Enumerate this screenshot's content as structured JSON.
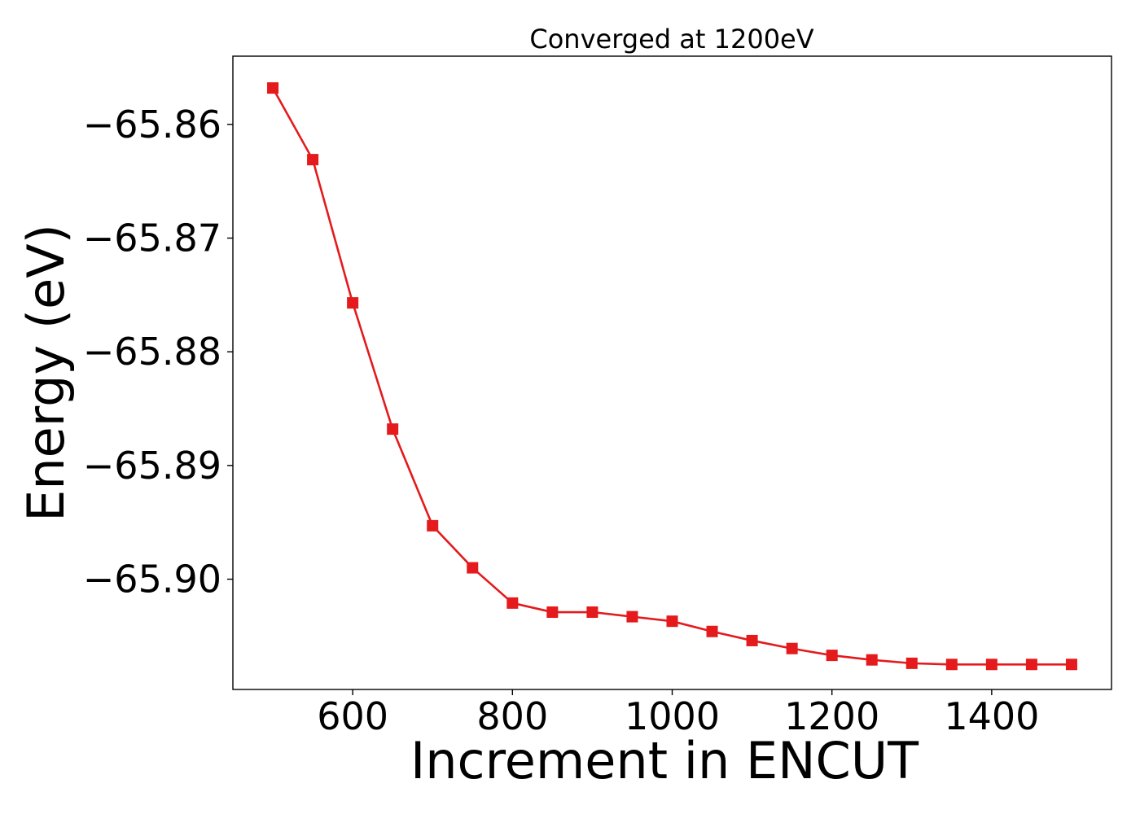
{
  "chart_data": {
    "type": "line",
    "title": "Converged at 1200eV",
    "xlabel": "Increment in ENCUT",
    "ylabel": "Energy (eV)",
    "xlim": [
      450,
      1550
    ],
    "ylim": [
      -65.9097,
      -65.854
    ],
    "xticks": [
      600,
      800,
      1000,
      1200,
      1400
    ],
    "xtick_labels": [
      "600",
      "800",
      "1000",
      "1200",
      "1400"
    ],
    "yticks": [
      -65.86,
      -65.87,
      -65.88,
      -65.89,
      -65.9
    ],
    "ytick_labels": [
      "−65.86",
      "−65.87",
      "−65.88",
      "−65.89",
      "−65.90"
    ],
    "grid": false,
    "series": [
      {
        "color": "#e41a1c",
        "marker": "square",
        "x": [
          500,
          550,
          600,
          650,
          700,
          750,
          800,
          850,
          900,
          950,
          1000,
          1050,
          1100,
          1150,
          1200,
          1250,
          1300,
          1350,
          1400,
          1450,
          1500
        ],
        "y": [
          -65.8568,
          -65.8631,
          -65.8757,
          -65.8868,
          -65.8953,
          -65.899,
          -65.9021,
          -65.9029,
          -65.9029,
          -65.9033,
          -65.9037,
          -65.9046,
          -65.9054,
          -65.9061,
          -65.9067,
          -65.9071,
          -65.9074,
          -65.9075,
          -65.9075,
          -65.9075,
          -65.9075
        ]
      }
    ]
  }
}
